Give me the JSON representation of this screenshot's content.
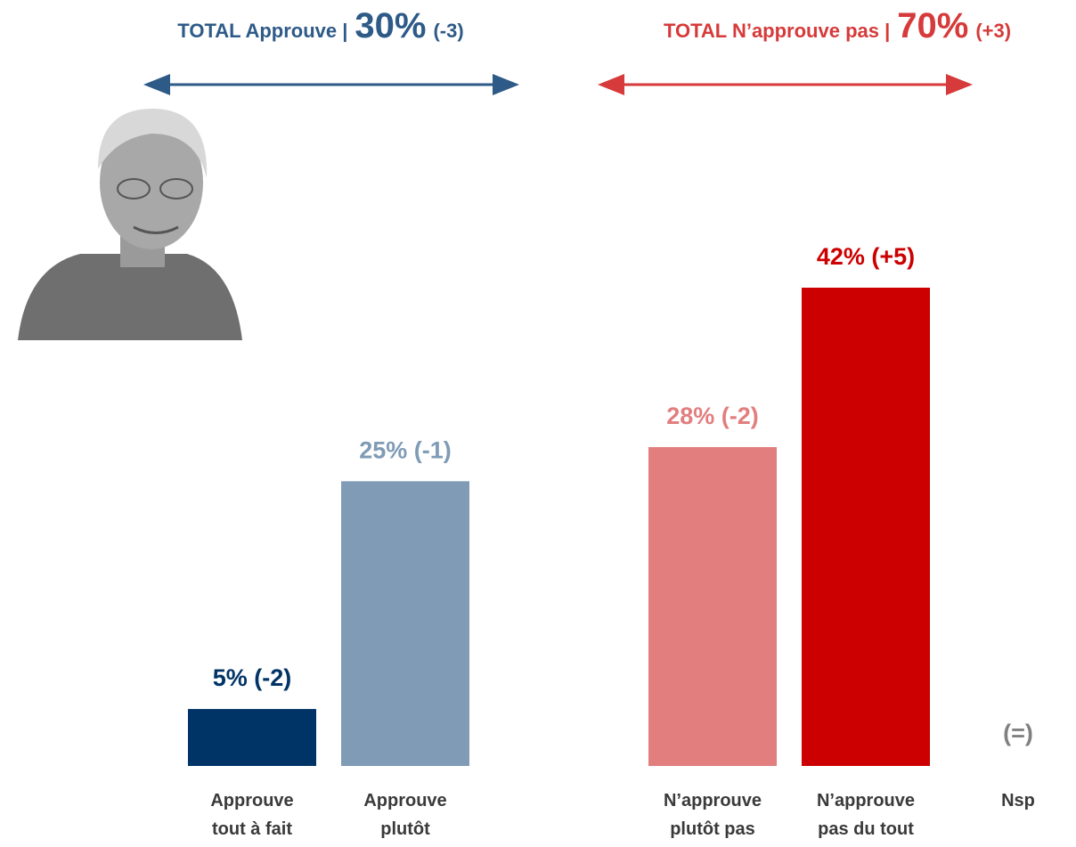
{
  "chart_data": {
    "type": "bar",
    "headers": [
      {
        "text": "TOTAL Approuve |",
        "total": "30%",
        "change": "(-3)",
        "color": "#2e5a87"
      },
      {
        "text": "TOTAL N’approuve pas |",
        "total": "70%",
        "change": "(+3)",
        "color": "#d63a3a"
      }
    ],
    "categories": [
      [
        "Approuve",
        "tout à fait"
      ],
      [
        "Approuve",
        "plutôt"
      ],
      [
        "N’approuve",
        "plutôt pas"
      ],
      [
        "N’approuve",
        "pas du tout"
      ],
      [
        "Nsp"
      ]
    ],
    "values": [
      5,
      25,
      28,
      42,
      null
    ],
    "value_labels": [
      "5% (-2)",
      "25% (-1)",
      "28% (-2)",
      "42% (+5)",
      "(=)"
    ],
    "colors": [
      "#003366",
      "#7f9bb5",
      "#e27e7e",
      "#cc0000",
      "#808080"
    ]
  }
}
